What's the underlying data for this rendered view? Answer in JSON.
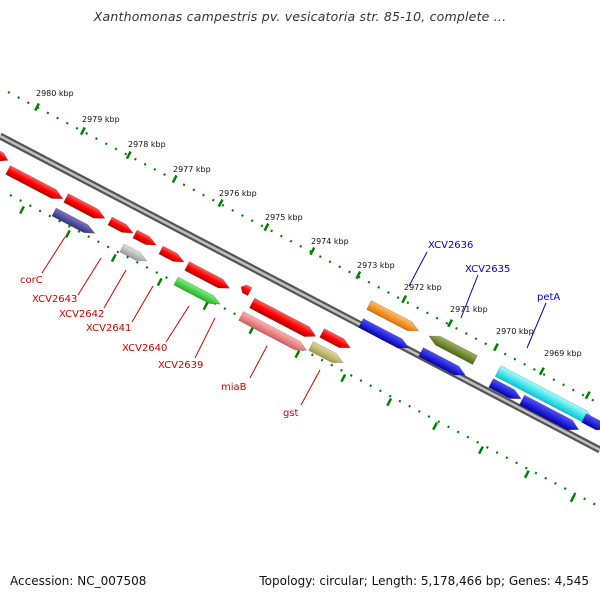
{
  "title": "Xanthomonas campestris pv. vesicatoria str. 85-10, complete ...",
  "footer": {
    "accession": "Accession: NC_007508",
    "topology": "Topology: circular; Length: 5,178,466 bp; Genes: 4,545"
  },
  "ticks": [
    "2980 kbp",
    "2979 kbp",
    "2978 kbp",
    "2977 kbp",
    "2976 kbp",
    "2975 kbp",
    "2974 kbp",
    "2973 kbp",
    "2972 kbp",
    "2971 kbp",
    "2970 kbp",
    "2969 kbp"
  ],
  "genes_below": [
    "corC",
    "XCV2643",
    "XCV2642",
    "XCV2641",
    "XCV2640",
    "XCV2639",
    "miaB",
    "gst"
  ],
  "genes_above": [
    "XCV2636",
    "XCV2635",
    "petA"
  ],
  "colors": {
    "red": "#ff0000",
    "label_red": "#cc0000",
    "label_blue": "#0000cc",
    "tick_green": "#008000"
  }
}
